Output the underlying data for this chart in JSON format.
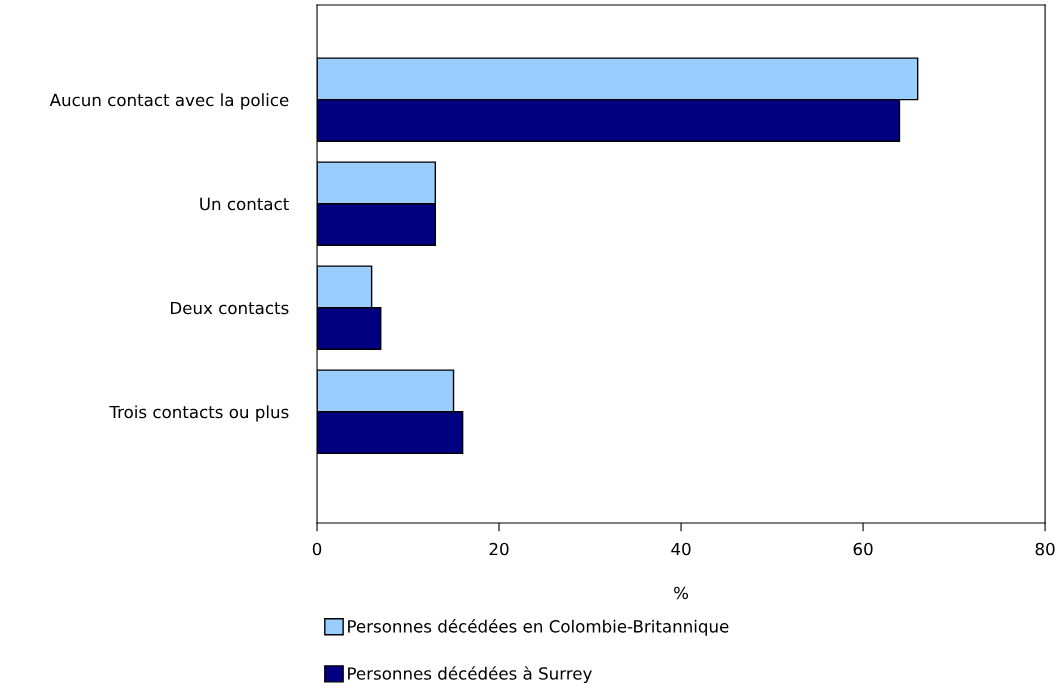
{
  "chart_data": {
    "type": "bar",
    "orientation": "horizontal",
    "categories": [
      "Aucun contact avec la police",
      "Un contact",
      "Deux contacts",
      "Trois contacts ou plus"
    ],
    "series": [
      {
        "name": "Personnes décédées en Colombie-Britannique",
        "color": "#99ccff",
        "values": [
          66,
          13,
          6,
          15
        ]
      },
      {
        "name": "Personnes décédées à Surrey",
        "color": "#000080",
        "values": [
          64,
          13,
          7,
          16
        ]
      }
    ],
    "xlabel": "%",
    "xlim": [
      0,
      80
    ],
    "xticks": [
      0,
      20,
      40,
      60,
      80
    ],
    "grid": false,
    "legend": "bottom"
  }
}
